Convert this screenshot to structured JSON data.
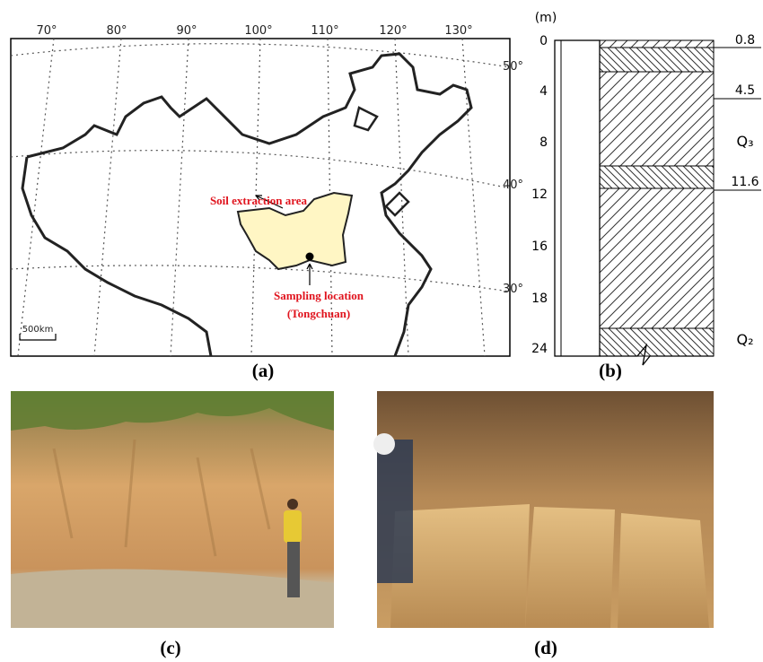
{
  "panels": {
    "a": {
      "label": "(a)",
      "longitudes": [
        "70°",
        "80°",
        "90°",
        "100°",
        "110°",
        "120°",
        "130°"
      ],
      "latitudes": [
        "50°",
        "40°",
        "30°"
      ],
      "extraction_area": "Soil extraction area",
      "sampling_location": [
        "Sampling location",
        "(Tongchuan)"
      ],
      "scale": "500km"
    },
    "b": {
      "label": "(b)",
      "unit": "(m)",
      "depths": [
        "0",
        "4",
        "8",
        "12",
        "16",
        "18",
        "24"
      ],
      "boundaries": [
        "0.8",
        "4.5",
        "11.6"
      ],
      "strata": [
        "Q₃",
        "Q₂"
      ]
    },
    "c": {
      "label": "(c)"
    },
    "d": {
      "label": "(d)"
    }
  }
}
